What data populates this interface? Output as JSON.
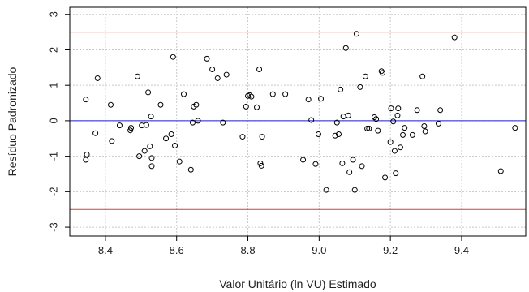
{
  "chart_data": {
    "type": "scatter",
    "xlabel": "Valor Unitário (ln VU) Estimado",
    "ylabel": "Resíduo Padronizado",
    "xlim": [
      8.3,
      9.58
    ],
    "ylim": [
      -3.25,
      3.2
    ],
    "xticks": [
      8.4,
      8.6,
      8.8,
      9.0,
      9.2,
      9.4
    ],
    "xtick_labels": [
      "8.4",
      "8.6",
      "8.8",
      "9.0",
      "9.2",
      "9.4"
    ],
    "yticks": [
      -3,
      -2,
      -1,
      0,
      1,
      2,
      3
    ],
    "ytick_labels": [
      "-3",
      "-2",
      "-1",
      "0",
      "1",
      "2",
      "3"
    ],
    "grid": true,
    "grid_color": "#c8c8c8",
    "reference_lines": [
      {
        "y": 2.5,
        "color": "#e03a3a"
      },
      {
        "y": 0,
        "color": "#2222cc"
      },
      {
        "y": -2.5,
        "color": "#e03a3a"
      }
    ],
    "marker": "open-circle",
    "marker_color": "#000000",
    "points": [
      [
        8.345,
        0.6
      ],
      [
        8.345,
        -1.1
      ],
      [
        8.348,
        -0.95
      ],
      [
        8.372,
        -0.35
      ],
      [
        8.378,
        1.2
      ],
      [
        8.415,
        0.45
      ],
      [
        8.418,
        -0.57
      ],
      [
        8.44,
        -0.13
      ],
      [
        8.47,
        -0.27
      ],
      [
        8.472,
        -0.2
      ],
      [
        8.49,
        1.25
      ],
      [
        8.495,
        -1.0
      ],
      [
        8.502,
        -0.13
      ],
      [
        8.51,
        -0.85
      ],
      [
        8.515,
        -0.12
      ],
      [
        8.52,
        0.8
      ],
      [
        8.525,
        -0.72
      ],
      [
        8.528,
        0.12
      ],
      [
        8.53,
        -1.05
      ],
      [
        8.53,
        -1.28
      ],
      [
        8.555,
        0.45
      ],
      [
        8.57,
        -0.5
      ],
      [
        8.585,
        -0.38
      ],
      [
        8.59,
        1.8
      ],
      [
        8.595,
        -0.7
      ],
      [
        8.608,
        -1.15
      ],
      [
        8.62,
        0.75
      ],
      [
        8.64,
        -1.38
      ],
      [
        8.645,
        -0.05
      ],
      [
        8.648,
        0.4
      ],
      [
        8.655,
        0.45
      ],
      [
        8.66,
        0.0
      ],
      [
        8.685,
        1.75
      ],
      [
        8.7,
        1.45
      ],
      [
        8.715,
        1.2
      ],
      [
        8.73,
        -0.05
      ],
      [
        8.74,
        1.3
      ],
      [
        8.785,
        -0.45
      ],
      [
        8.795,
        0.4
      ],
      [
        8.8,
        0.7
      ],
      [
        8.805,
        0.72
      ],
      [
        8.81,
        0.68
      ],
      [
        8.825,
        0.38
      ],
      [
        8.832,
        1.45
      ],
      [
        8.835,
        -1.2
      ],
      [
        8.838,
        -1.27
      ],
      [
        8.84,
        -0.45
      ],
      [
        8.87,
        0.75
      ],
      [
        8.905,
        0.75
      ],
      [
        8.955,
        -1.1
      ],
      [
        8.97,
        0.6
      ],
      [
        8.978,
        0.02
      ],
      [
        8.99,
        -1.22
      ],
      [
        8.998,
        -0.38
      ],
      [
        9.005,
        0.62
      ],
      [
        9.02,
        -1.95
      ],
      [
        9.045,
        -0.42
      ],
      [
        9.05,
        -0.05
      ],
      [
        9.055,
        -0.38
      ],
      [
        9.06,
        0.88
      ],
      [
        9.065,
        -1.2
      ],
      [
        9.068,
        0.12
      ],
      [
        9.075,
        2.05
      ],
      [
        9.082,
        0.15
      ],
      [
        9.085,
        -1.45
      ],
      [
        9.095,
        -1.1
      ],
      [
        9.1,
        -1.95
      ],
      [
        9.105,
        2.45
      ],
      [
        9.115,
        0.95
      ],
      [
        9.12,
        -1.28
      ],
      [
        9.13,
        1.25
      ],
      [
        9.135,
        -0.22
      ],
      [
        9.14,
        -0.22
      ],
      [
        9.155,
        0.1
      ],
      [
        9.16,
        0.05
      ],
      [
        9.165,
        -0.28
      ],
      [
        9.175,
        1.4
      ],
      [
        9.178,
        1.35
      ],
      [
        9.185,
        -1.6
      ],
      [
        9.2,
        -0.6
      ],
      [
        9.202,
        0.35
      ],
      [
        9.208,
        -0.02
      ],
      [
        9.212,
        -0.85
      ],
      [
        9.215,
        -1.48
      ],
      [
        9.22,
        0.15
      ],
      [
        9.222,
        0.35
      ],
      [
        9.228,
        -0.75
      ],
      [
        9.235,
        -0.4
      ],
      [
        9.24,
        -0.2
      ],
      [
        9.262,
        -0.4
      ],
      [
        9.275,
        0.3
      ],
      [
        9.29,
        1.25
      ],
      [
        9.295,
        -0.15
      ],
      [
        9.298,
        -0.3
      ],
      [
        9.335,
        -0.08
      ],
      [
        9.34,
        0.3
      ],
      [
        9.38,
        2.35
      ],
      [
        9.51,
        -1.42
      ],
      [
        9.55,
        -0.2
      ]
    ]
  }
}
